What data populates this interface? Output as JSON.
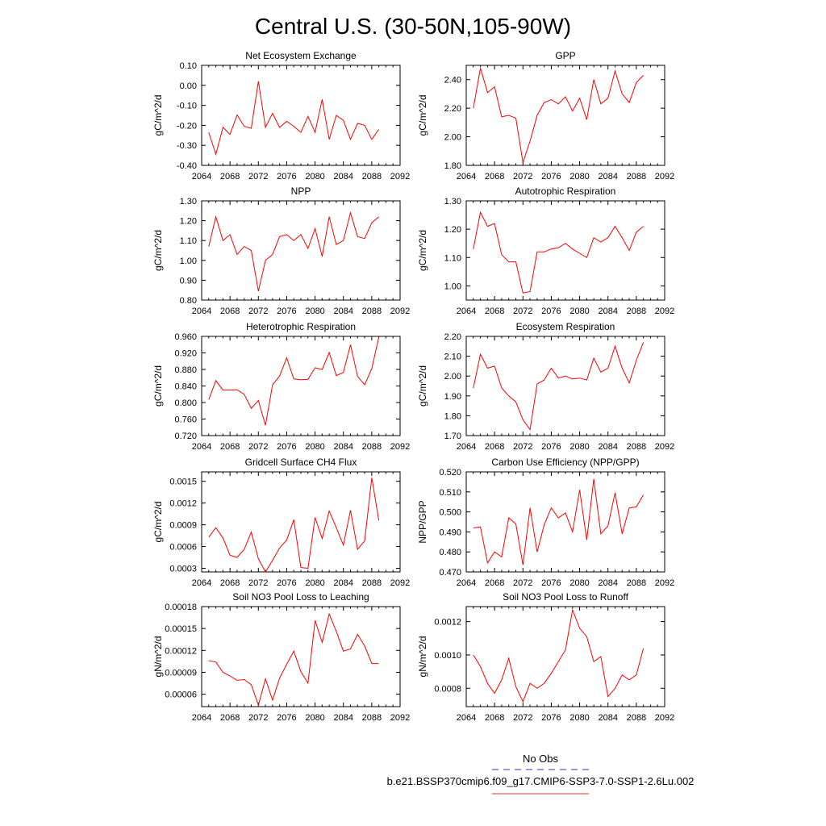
{
  "figure": {
    "title": "Central U.S. (30-50N,105-90W)"
  },
  "legend": {
    "entries": [
      {
        "label": "No Obs",
        "color": "#3333cc",
        "dash": true
      },
      {
        "label": "b.e21.BSSP370cmip6.f09_g17.CMIP6-SSP3-7.0-SSP1-2.6Lu.002",
        "color": "#e03030",
        "dash": false
      }
    ]
  },
  "colors": {
    "series": "#ff0000",
    "axis": "#000000"
  },
  "chart_data": [
    {
      "type": "line",
      "title": "Net Ecosystem Exchange",
      "ylabel": "gC/m^2/d",
      "xlim": [
        2064,
        2092
      ],
      "xticks": [
        2064,
        2068,
        2072,
        2076,
        2080,
        2084,
        2088,
        2092
      ],
      "ylim": [
        -0.4,
        0.1
      ],
      "yticks": [
        "0.10",
        "0.00",
        "-0.10",
        "-0.20",
        "-0.30",
        "-0.40"
      ],
      "x": [
        2065,
        2066,
        2067,
        2068,
        2069,
        2070,
        2071,
        2072,
        2073,
        2074,
        2075,
        2076,
        2077,
        2078,
        2079,
        2080,
        2081,
        2082,
        2083,
        2084,
        2085,
        2086,
        2087,
        2088,
        2089
      ],
      "values": [
        -0.235,
        -0.345,
        -0.21,
        -0.245,
        -0.148,
        -0.205,
        -0.215,
        0.02,
        -0.21,
        -0.14,
        -0.21,
        -0.18,
        -0.205,
        -0.235,
        -0.155,
        -0.235,
        -0.07,
        -0.27,
        -0.15,
        -0.175,
        -0.27,
        -0.19,
        -0.2,
        -0.27,
        -0.22
      ]
    },
    {
      "type": "line",
      "title": "GPP",
      "ylabel": "gC/m^2/d",
      "xlim": [
        2064,
        2092
      ],
      "xticks": [
        2064,
        2068,
        2072,
        2076,
        2080,
        2084,
        2088,
        2092
      ],
      "ylim": [
        1.8,
        2.5
      ],
      "yticks": [
        "2.40",
        "2.20",
        "2.00",
        "1.80"
      ],
      "x": [
        2065,
        2066,
        2067,
        2068,
        2069,
        2070,
        2071,
        2072,
        2073,
        2074,
        2075,
        2076,
        2077,
        2078,
        2079,
        2080,
        2081,
        2082,
        2083,
        2084,
        2085,
        2086,
        2087,
        2088,
        2089
      ],
      "values": [
        2.2,
        2.48,
        2.31,
        2.35,
        2.14,
        2.15,
        2.13,
        1.82,
        1.97,
        2.15,
        2.24,
        2.26,
        2.23,
        2.28,
        2.18,
        2.27,
        2.12,
        2.4,
        2.23,
        2.27,
        2.46,
        2.3,
        2.24,
        2.38,
        2.43
      ]
    },
    {
      "type": "line",
      "title": "NPP",
      "ylabel": "gC/m^2/d",
      "xlim": [
        2064,
        2092
      ],
      "xticks": [
        2064,
        2068,
        2072,
        2076,
        2080,
        2084,
        2088,
        2092
      ],
      "ylim": [
        0.8,
        1.3
      ],
      "yticks": [
        "1.30",
        "1.20",
        "1.10",
        "1.00",
        "0.90",
        "0.80"
      ],
      "x": [
        2065,
        2066,
        2067,
        2068,
        2069,
        2070,
        2071,
        2072,
        2073,
        2074,
        2075,
        2076,
        2077,
        2078,
        2079,
        2080,
        2081,
        2082,
        2083,
        2084,
        2085,
        2086,
        2087,
        2088,
        2089
      ],
      "values": [
        1.07,
        1.22,
        1.1,
        1.13,
        1.03,
        1.07,
        1.05,
        0.845,
        1.0,
        1.03,
        1.12,
        1.13,
        1.1,
        1.13,
        1.06,
        1.16,
        1.02,
        1.22,
        1.08,
        1.1,
        1.24,
        1.12,
        1.11,
        1.19,
        1.22
      ]
    },
    {
      "type": "line",
      "title": "Autotrophic Respiration",
      "ylabel": "gC/m^2/d",
      "xlim": [
        2064,
        2092
      ],
      "xticks": [
        2064,
        2068,
        2072,
        2076,
        2080,
        2084,
        2088,
        2092
      ],
      "ylim": [
        0.95,
        1.3
      ],
      "yticks": [
        "1.30",
        "1.20",
        "1.10",
        "1.00"
      ],
      "x": [
        2065,
        2066,
        2067,
        2068,
        2069,
        2070,
        2071,
        2072,
        2073,
        2074,
        2075,
        2076,
        2077,
        2078,
        2079,
        2080,
        2081,
        2082,
        2083,
        2084,
        2085,
        2086,
        2087,
        2088,
        2089
      ],
      "values": [
        1.13,
        1.26,
        1.21,
        1.22,
        1.11,
        1.085,
        1.085,
        0.975,
        0.98,
        1.12,
        1.12,
        1.13,
        1.135,
        1.15,
        1.13,
        1.115,
        1.1,
        1.17,
        1.155,
        1.17,
        1.21,
        1.17,
        1.125,
        1.19,
        1.21
      ]
    },
    {
      "type": "line",
      "title": "Heterotrophic Respiration",
      "ylabel": "gC/m^2/d",
      "xlim": [
        2064,
        2092
      ],
      "xticks": [
        2064,
        2068,
        2072,
        2076,
        2080,
        2084,
        2088,
        2092
      ],
      "ylim": [
        0.72,
        0.96
      ],
      "yticks": [
        "0.960",
        "0.920",
        "0.880",
        "0.840",
        "0.800",
        "0.760",
        "0.720"
      ],
      "x": [
        2065,
        2066,
        2067,
        2068,
        2069,
        2070,
        2071,
        2072,
        2073,
        2074,
        2075,
        2076,
        2077,
        2078,
        2079,
        2080,
        2081,
        2082,
        2083,
        2084,
        2085,
        2086,
        2087,
        2088,
        2089
      ],
      "values": [
        0.807,
        0.853,
        0.83,
        0.83,
        0.831,
        0.82,
        0.786,
        0.805,
        0.745,
        0.843,
        0.864,
        0.908,
        0.857,
        0.855,
        0.856,
        0.884,
        0.88,
        0.921,
        0.865,
        0.873,
        0.94,
        0.863,
        0.843,
        0.882,
        0.958
      ]
    },
    {
      "type": "line",
      "title": "Ecosystem Respiration",
      "ylabel": "gC/m^2/d",
      "xlim": [
        2064,
        2092
      ],
      "xticks": [
        2064,
        2068,
        2072,
        2076,
        2080,
        2084,
        2088,
        2092
      ],
      "ylim": [
        1.7,
        2.2
      ],
      "yticks": [
        "2.20",
        "2.10",
        "2.00",
        "1.90",
        "1.80",
        "1.70"
      ],
      "x": [
        2065,
        2066,
        2067,
        2068,
        2069,
        2070,
        2071,
        2072,
        2073,
        2074,
        2075,
        2076,
        2077,
        2078,
        2079,
        2080,
        2081,
        2082,
        2083,
        2084,
        2085,
        2086,
        2087,
        2088,
        2089
      ],
      "values": [
        1.94,
        2.11,
        2.04,
        2.05,
        1.94,
        1.9,
        1.87,
        1.78,
        1.73,
        1.96,
        1.98,
        2.04,
        1.99,
        2.0,
        1.985,
        1.99,
        1.98,
        2.09,
        2.02,
        2.04,
        2.15,
        2.04,
        1.965,
        2.08,
        2.17
      ]
    },
    {
      "type": "line",
      "title": "Gridcell Surface CH4 Flux",
      "ylabel": "gC/m^2/d",
      "xlim": [
        2064,
        2092
      ],
      "xticks": [
        2064,
        2068,
        2072,
        2076,
        2080,
        2084,
        2088,
        2092
      ],
      "ylim": [
        0.00025,
        0.00163
      ],
      "yticks": [
        "0.0015",
        "0.0012",
        "0.0009",
        "0.0006",
        "0.0003"
      ],
      "ytick_values": [
        0.0015,
        0.0012,
        0.0009,
        0.0006,
        0.0003
      ],
      "x": [
        2065,
        2066,
        2067,
        2068,
        2069,
        2070,
        2071,
        2072,
        2073,
        2074,
        2075,
        2076,
        2077,
        2078,
        2079,
        2080,
        2081,
        2082,
        2083,
        2084,
        2085,
        2086,
        2087,
        2088,
        2089
      ],
      "values": [
        0.00073,
        0.00086,
        0.00072,
        0.00048,
        0.00045,
        0.00056,
        0.0008,
        0.00043,
        0.00025,
        0.00041,
        0.00058,
        0.00069,
        0.00097,
        0.00031,
        0.0003,
        0.001,
        0.00071,
        0.00109,
        0.00086,
        0.00062,
        0.0011,
        0.00056,
        0.00068,
        0.00155,
        0.00096
      ]
    },
    {
      "type": "line",
      "title": "Carbon Use Efficiency (NPP/GPP)",
      "ylabel": "NPP/GPP",
      "xlim": [
        2064,
        2092
      ],
      "xticks": [
        2064,
        2068,
        2072,
        2076,
        2080,
        2084,
        2088,
        2092
      ],
      "ylim": [
        0.47,
        0.52
      ],
      "yticks": [
        "0.520",
        "0.510",
        "0.500",
        "0.490",
        "0.480",
        "0.470"
      ],
      "x": [
        2065,
        2066,
        2067,
        2068,
        2069,
        2070,
        2071,
        2072,
        2073,
        2074,
        2075,
        2076,
        2077,
        2078,
        2079,
        2080,
        2081,
        2082,
        2083,
        2084,
        2085,
        2086,
        2087,
        2088,
        2089
      ],
      "values": [
        0.492,
        0.4925,
        0.4745,
        0.48,
        0.4775,
        0.497,
        0.494,
        0.4735,
        0.502,
        0.48,
        0.4935,
        0.502,
        0.497,
        0.4995,
        0.49,
        0.511,
        0.486,
        0.5165,
        0.489,
        0.493,
        0.5095,
        0.489,
        0.502,
        0.5025,
        0.5085
      ]
    },
    {
      "type": "line",
      "title": "Soil NO3 Pool Loss to Leaching",
      "ylabel": "gN/m^2/d",
      "xlim": [
        2064,
        2092
      ],
      "xticks": [
        2064,
        2068,
        2072,
        2076,
        2080,
        2084,
        2088,
        2092
      ],
      "ylim": [
        4.3e-05,
        0.00018
      ],
      "yticks": [
        "0.00018",
        "0.00015",
        "0.00012",
        "0.00009",
        "0.00006"
      ],
      "ytick_values": [
        0.00018,
        0.00015,
        0.00012,
        9e-05,
        6e-05
      ],
      "x": [
        2065,
        2066,
        2067,
        2068,
        2069,
        2070,
        2071,
        2072,
        2073,
        2074,
        2075,
        2076,
        2077,
        2078,
        2079,
        2080,
        2081,
        2082,
        2083,
        2084,
        2085,
        2086,
        2087,
        2088,
        2089
      ],
      "values": [
        0.000106,
        0.000104,
        9e-05,
        8.5e-05,
        7.9e-05,
        8e-05,
        7.3e-05,
        4.5e-05,
        8.1e-05,
        5.2e-05,
        8.2e-05,
        0.000101,
        0.000119,
        9.1e-05,
        7.5e-05,
        0.000161,
        0.000131,
        0.00017,
        0.000146,
        0.000119,
        0.000122,
        0.000142,
        0.000126,
        0.000102,
        0.000102
      ]
    },
    {
      "type": "line",
      "title": "Soil NO3 Pool Loss to Runoff",
      "ylabel": "gN/m^2/d",
      "xlim": [
        2064,
        2092
      ],
      "xticks": [
        2064,
        2068,
        2072,
        2076,
        2080,
        2084,
        2088,
        2092
      ],
      "ylim": [
        0.00069,
        0.00129
      ],
      "yticks": [
        "0.0012",
        "0.0010",
        "0.0008"
      ],
      "ytick_values": [
        0.0012,
        0.001,
        0.0008
      ],
      "x": [
        2065,
        2066,
        2067,
        2068,
        2069,
        2070,
        2071,
        2072,
        2073,
        2074,
        2075,
        2076,
        2077,
        2078,
        2079,
        2080,
        2081,
        2082,
        2083,
        2084,
        2085,
        2086,
        2087,
        2088,
        2089
      ],
      "values": [
        0.001,
        0.00093,
        0.00083,
        0.00077,
        0.00085,
        0.00098,
        0.00081,
        0.00072,
        0.00083,
        0.0008,
        0.00083,
        0.00089,
        0.00096,
        0.00103,
        0.00127,
        0.00116,
        0.00111,
        0.00096,
        0.00099,
        0.00075,
        0.0008,
        0.00088,
        0.00085,
        0.00088,
        0.00104
      ]
    }
  ]
}
